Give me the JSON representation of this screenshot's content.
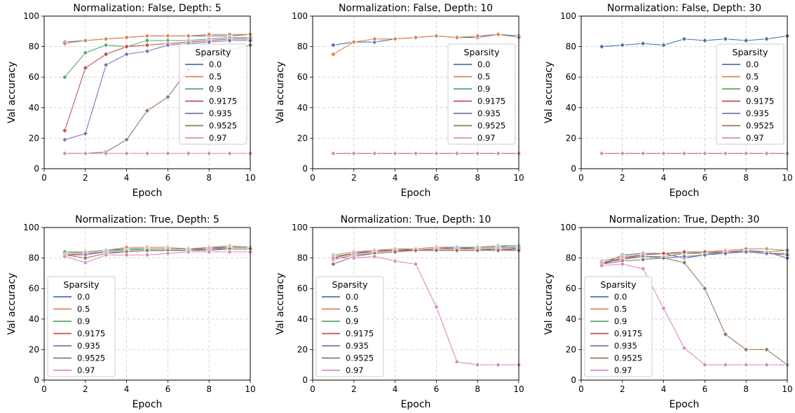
{
  "figure": {
    "legend_title": "Sparsity",
    "sparsity_levels": [
      "0.0",
      "0.5",
      "0.9",
      "0.9175",
      "0.935",
      "0.9525",
      "0.97"
    ],
    "colors": [
      "#4c72b0",
      "#dd8452",
      "#55a868",
      "#c44e52",
      "#8172b3",
      "#937860",
      "#da8bc3"
    ]
  },
  "chart_data": [
    {
      "type": "line",
      "title": "Normalization: False, Depth: 5",
      "xlabel": "Epoch",
      "ylabel": "Val accuracy",
      "xlim": [
        0,
        10
      ],
      "ylim": [
        0,
        100
      ],
      "xticks": [
        "0",
        "2",
        "4",
        "6",
        "8",
        "10"
      ],
      "yticks": [
        "0",
        "20",
        "40",
        "60",
        "80",
        "100"
      ],
      "grid": true,
      "legend_position": "center-right",
      "x": [
        1,
        2,
        3,
        4,
        5,
        6,
        7,
        8,
        9,
        10
      ],
      "series": [
        {
          "name": "0.0",
          "values": [
            83,
            84,
            85,
            86,
            87,
            87,
            87,
            87,
            87,
            88
          ]
        },
        {
          "name": "0.5",
          "values": [
            82,
            84,
            85,
            86,
            87,
            87,
            87,
            88,
            88,
            88
          ]
        },
        {
          "name": "0.9",
          "values": [
            60,
            76,
            81,
            80,
            84,
            84,
            84,
            85,
            86,
            86
          ]
        },
        {
          "name": "0.9175",
          "values": [
            25,
            66,
            75,
            80,
            81,
            82,
            83,
            84,
            85,
            85
          ]
        },
        {
          "name": "0.935",
          "values": [
            19,
            23,
            68,
            75,
            77,
            81,
            82,
            83,
            84,
            84
          ]
        },
        {
          "name": "0.9525",
          "values": [
            10,
            10,
            11,
            19,
            38,
            47,
            65,
            74,
            78,
            81
          ]
        },
        {
          "name": "0.97",
          "values": [
            10,
            10,
            10,
            10,
            10,
            10,
            10,
            10,
            10,
            10
          ]
        }
      ]
    },
    {
      "type": "line",
      "title": "Normalization: False, Depth: 10",
      "xlabel": "Epoch",
      "ylabel": "Val accuracy",
      "xlim": [
        0,
        10
      ],
      "ylim": [
        0,
        100
      ],
      "xticks": [
        "0",
        "2",
        "4",
        "6",
        "8",
        "10"
      ],
      "yticks": [
        "0",
        "20",
        "40",
        "60",
        "80",
        "100"
      ],
      "grid": true,
      "legend_position": "center-right",
      "x": [
        1,
        2,
        3,
        4,
        5,
        6,
        7,
        8,
        9,
        10
      ],
      "series": [
        {
          "name": "0.0",
          "values": [
            81,
            83,
            83,
            85,
            86,
            87,
            86,
            86,
            88,
            87
          ]
        },
        {
          "name": "0.5",
          "values": [
            75,
            83,
            85,
            85,
            86,
            87,
            86,
            87,
            88,
            86
          ]
        },
        {
          "name": "0.9",
          "values": [
            10,
            10,
            10,
            10,
            10,
            10,
            10,
            10,
            10,
            10
          ]
        },
        {
          "name": "0.9175",
          "values": [
            10,
            10,
            10,
            10,
            10,
            10,
            10,
            10,
            10,
            10
          ]
        },
        {
          "name": "0.935",
          "values": [
            10,
            10,
            10,
            10,
            10,
            10,
            10,
            10,
            10,
            10
          ]
        },
        {
          "name": "0.9525",
          "values": [
            10,
            10,
            10,
            10,
            10,
            10,
            10,
            10,
            10,
            10
          ]
        },
        {
          "name": "0.97",
          "values": [
            10,
            10,
            10,
            10,
            10,
            10,
            10,
            10,
            10,
            10
          ]
        }
      ]
    },
    {
      "type": "line",
      "title": "Normalization: False, Depth: 30",
      "xlabel": "Epoch",
      "ylabel": "Val accuracy",
      "xlim": [
        0,
        10
      ],
      "ylim": [
        0,
        100
      ],
      "xticks": [
        "0",
        "2",
        "4",
        "6",
        "8",
        "10"
      ],
      "yticks": [
        "0",
        "20",
        "40",
        "60",
        "80",
        "100"
      ],
      "grid": true,
      "legend_position": "center-right",
      "x": [
        1,
        2,
        3,
        4,
        5,
        6,
        7,
        8,
        9,
        10
      ],
      "series": [
        {
          "name": "0.0",
          "values": [
            80,
            81,
            82,
            81,
            85,
            84,
            85,
            84,
            85,
            87
          ]
        },
        {
          "name": "0.5",
          "values": [
            10,
            10,
            10,
            10,
            10,
            10,
            10,
            10,
            10,
            10
          ]
        },
        {
          "name": "0.9",
          "values": [
            10,
            10,
            10,
            10,
            10,
            10,
            10,
            10,
            10,
            10
          ]
        },
        {
          "name": "0.9175",
          "values": [
            10,
            10,
            10,
            10,
            10,
            10,
            10,
            10,
            10,
            10
          ]
        },
        {
          "name": "0.935",
          "values": [
            10,
            10,
            10,
            10,
            10,
            10,
            10,
            10,
            10,
            10
          ]
        },
        {
          "name": "0.9525",
          "values": [
            10,
            10,
            10,
            10,
            10,
            10,
            10,
            10,
            10,
            10
          ]
        },
        {
          "name": "0.97",
          "values": [
            10,
            10,
            10,
            10,
            10,
            10,
            10,
            10,
            10,
            10
          ]
        }
      ]
    },
    {
      "type": "line",
      "title": "Normalization: True, Depth: 5",
      "xlabel": "Epoch",
      "ylabel": "Val accuracy",
      "xlim": [
        0,
        10
      ],
      "ylim": [
        0,
        100
      ],
      "xticks": [
        "0",
        "2",
        "4",
        "6",
        "8",
        "10"
      ],
      "yticks": [
        "0",
        "20",
        "40",
        "60",
        "80",
        "100"
      ],
      "grid": true,
      "legend_position": "lower-left",
      "x": [
        1,
        2,
        3,
        4,
        5,
        6,
        7,
        8,
        9,
        10
      ],
      "series": [
        {
          "name": "0.0",
          "values": [
            83,
            84,
            85,
            86,
            86,
            86,
            86,
            87,
            87,
            87
          ]
        },
        {
          "name": "0.5",
          "values": [
            83,
            84,
            85,
            87,
            87,
            87,
            86,
            87,
            88,
            87
          ]
        },
        {
          "name": "0.9",
          "values": [
            84,
            84,
            85,
            85,
            86,
            86,
            86,
            86,
            87,
            87
          ]
        },
        {
          "name": "0.9175",
          "values": [
            82,
            83,
            84,
            84,
            85,
            85,
            85,
            86,
            86,
            86
          ]
        },
        {
          "name": "0.935",
          "values": [
            82,
            82,
            84,
            84,
            85,
            85,
            85,
            86,
            86,
            86
          ]
        },
        {
          "name": "0.9525",
          "values": [
            82,
            80,
            83,
            84,
            85,
            85,
            85,
            85,
            86,
            86
          ]
        },
        {
          "name": "0.97",
          "values": [
            81,
            77,
            82,
            82,
            82,
            83,
            84,
            84,
            84,
            84
          ]
        }
      ]
    },
    {
      "type": "line",
      "title": "Normalization: True, Depth: 10",
      "xlabel": "Epoch",
      "ylabel": "Val accuracy",
      "xlim": [
        0,
        10
      ],
      "ylim": [
        0,
        100
      ],
      "xticks": [
        "0",
        "2",
        "4",
        "6",
        "8",
        "10"
      ],
      "yticks": [
        "0",
        "20",
        "40",
        "60",
        "80",
        "100"
      ],
      "grid": true,
      "legend_position": "lower-left",
      "x": [
        1,
        2,
        3,
        4,
        5,
        6,
        7,
        8,
        9,
        10
      ],
      "series": [
        {
          "name": "0.0",
          "values": [
            81,
            83,
            85,
            85,
            86,
            87,
            87,
            87,
            88,
            88
          ]
        },
        {
          "name": "0.5",
          "values": [
            82,
            84,
            85,
            86,
            86,
            87,
            86,
            87,
            88,
            86
          ]
        },
        {
          "name": "0.9",
          "values": [
            81,
            83,
            84,
            85,
            85,
            86,
            86,
            87,
            87,
            87
          ]
        },
        {
          "name": "0.9175",
          "values": [
            80,
            83,
            84,
            85,
            85,
            86,
            86,
            86,
            86,
            86
          ]
        },
        {
          "name": "0.935",
          "values": [
            79,
            82,
            83,
            84,
            85,
            85,
            85,
            85,
            86,
            85
          ]
        },
        {
          "name": "0.9525",
          "values": [
            76,
            81,
            83,
            84,
            85,
            85,
            85,
            85,
            85,
            85
          ]
        },
        {
          "name": "0.97",
          "values": [
            80,
            80,
            81,
            78,
            76,
            48,
            12,
            10,
            10,
            10
          ]
        }
      ]
    },
    {
      "type": "line",
      "title": "Normalization: True, Depth: 30",
      "xlabel": "Epoch",
      "ylabel": "Val accuracy",
      "xlim": [
        0,
        10
      ],
      "ylim": [
        0,
        100
      ],
      "xticks": [
        "0",
        "2",
        "4",
        "6",
        "8",
        "10"
      ],
      "yticks": [
        "0",
        "20",
        "40",
        "60",
        "80",
        "100"
      ],
      "grid": true,
      "legend_position": "lower-left",
      "x": [
        1,
        2,
        3,
        4,
        5,
        6,
        7,
        8,
        9,
        10
      ],
      "series": [
        {
          "name": "0.0",
          "values": [
            76,
            82,
            83,
            83,
            80,
            82,
            84,
            85,
            84,
            80
          ]
        },
        {
          "name": "0.5",
          "values": [
            78,
            81,
            82,
            83,
            83,
            84,
            85,
            86,
            86,
            85
          ]
        },
        {
          "name": "0.9",
          "values": [
            77,
            80,
            81,
            81,
            83,
            83,
            84,
            84,
            84,
            85
          ]
        },
        {
          "name": "0.9175",
          "values": [
            76,
            80,
            82,
            83,
            84,
            84,
            84,
            84,
            83,
            83
          ]
        },
        {
          "name": "0.935",
          "values": [
            77,
            79,
            81,
            80,
            81,
            82,
            83,
            84,
            83,
            82
          ]
        },
        {
          "name": "0.9525",
          "values": [
            76,
            78,
            79,
            80,
            77,
            60,
            30,
            20,
            20,
            10
          ]
        },
        {
          "name": "0.97",
          "values": [
            75,
            76,
            73,
            47,
            21,
            10,
            10,
            10,
            10,
            10
          ]
        }
      ]
    }
  ]
}
